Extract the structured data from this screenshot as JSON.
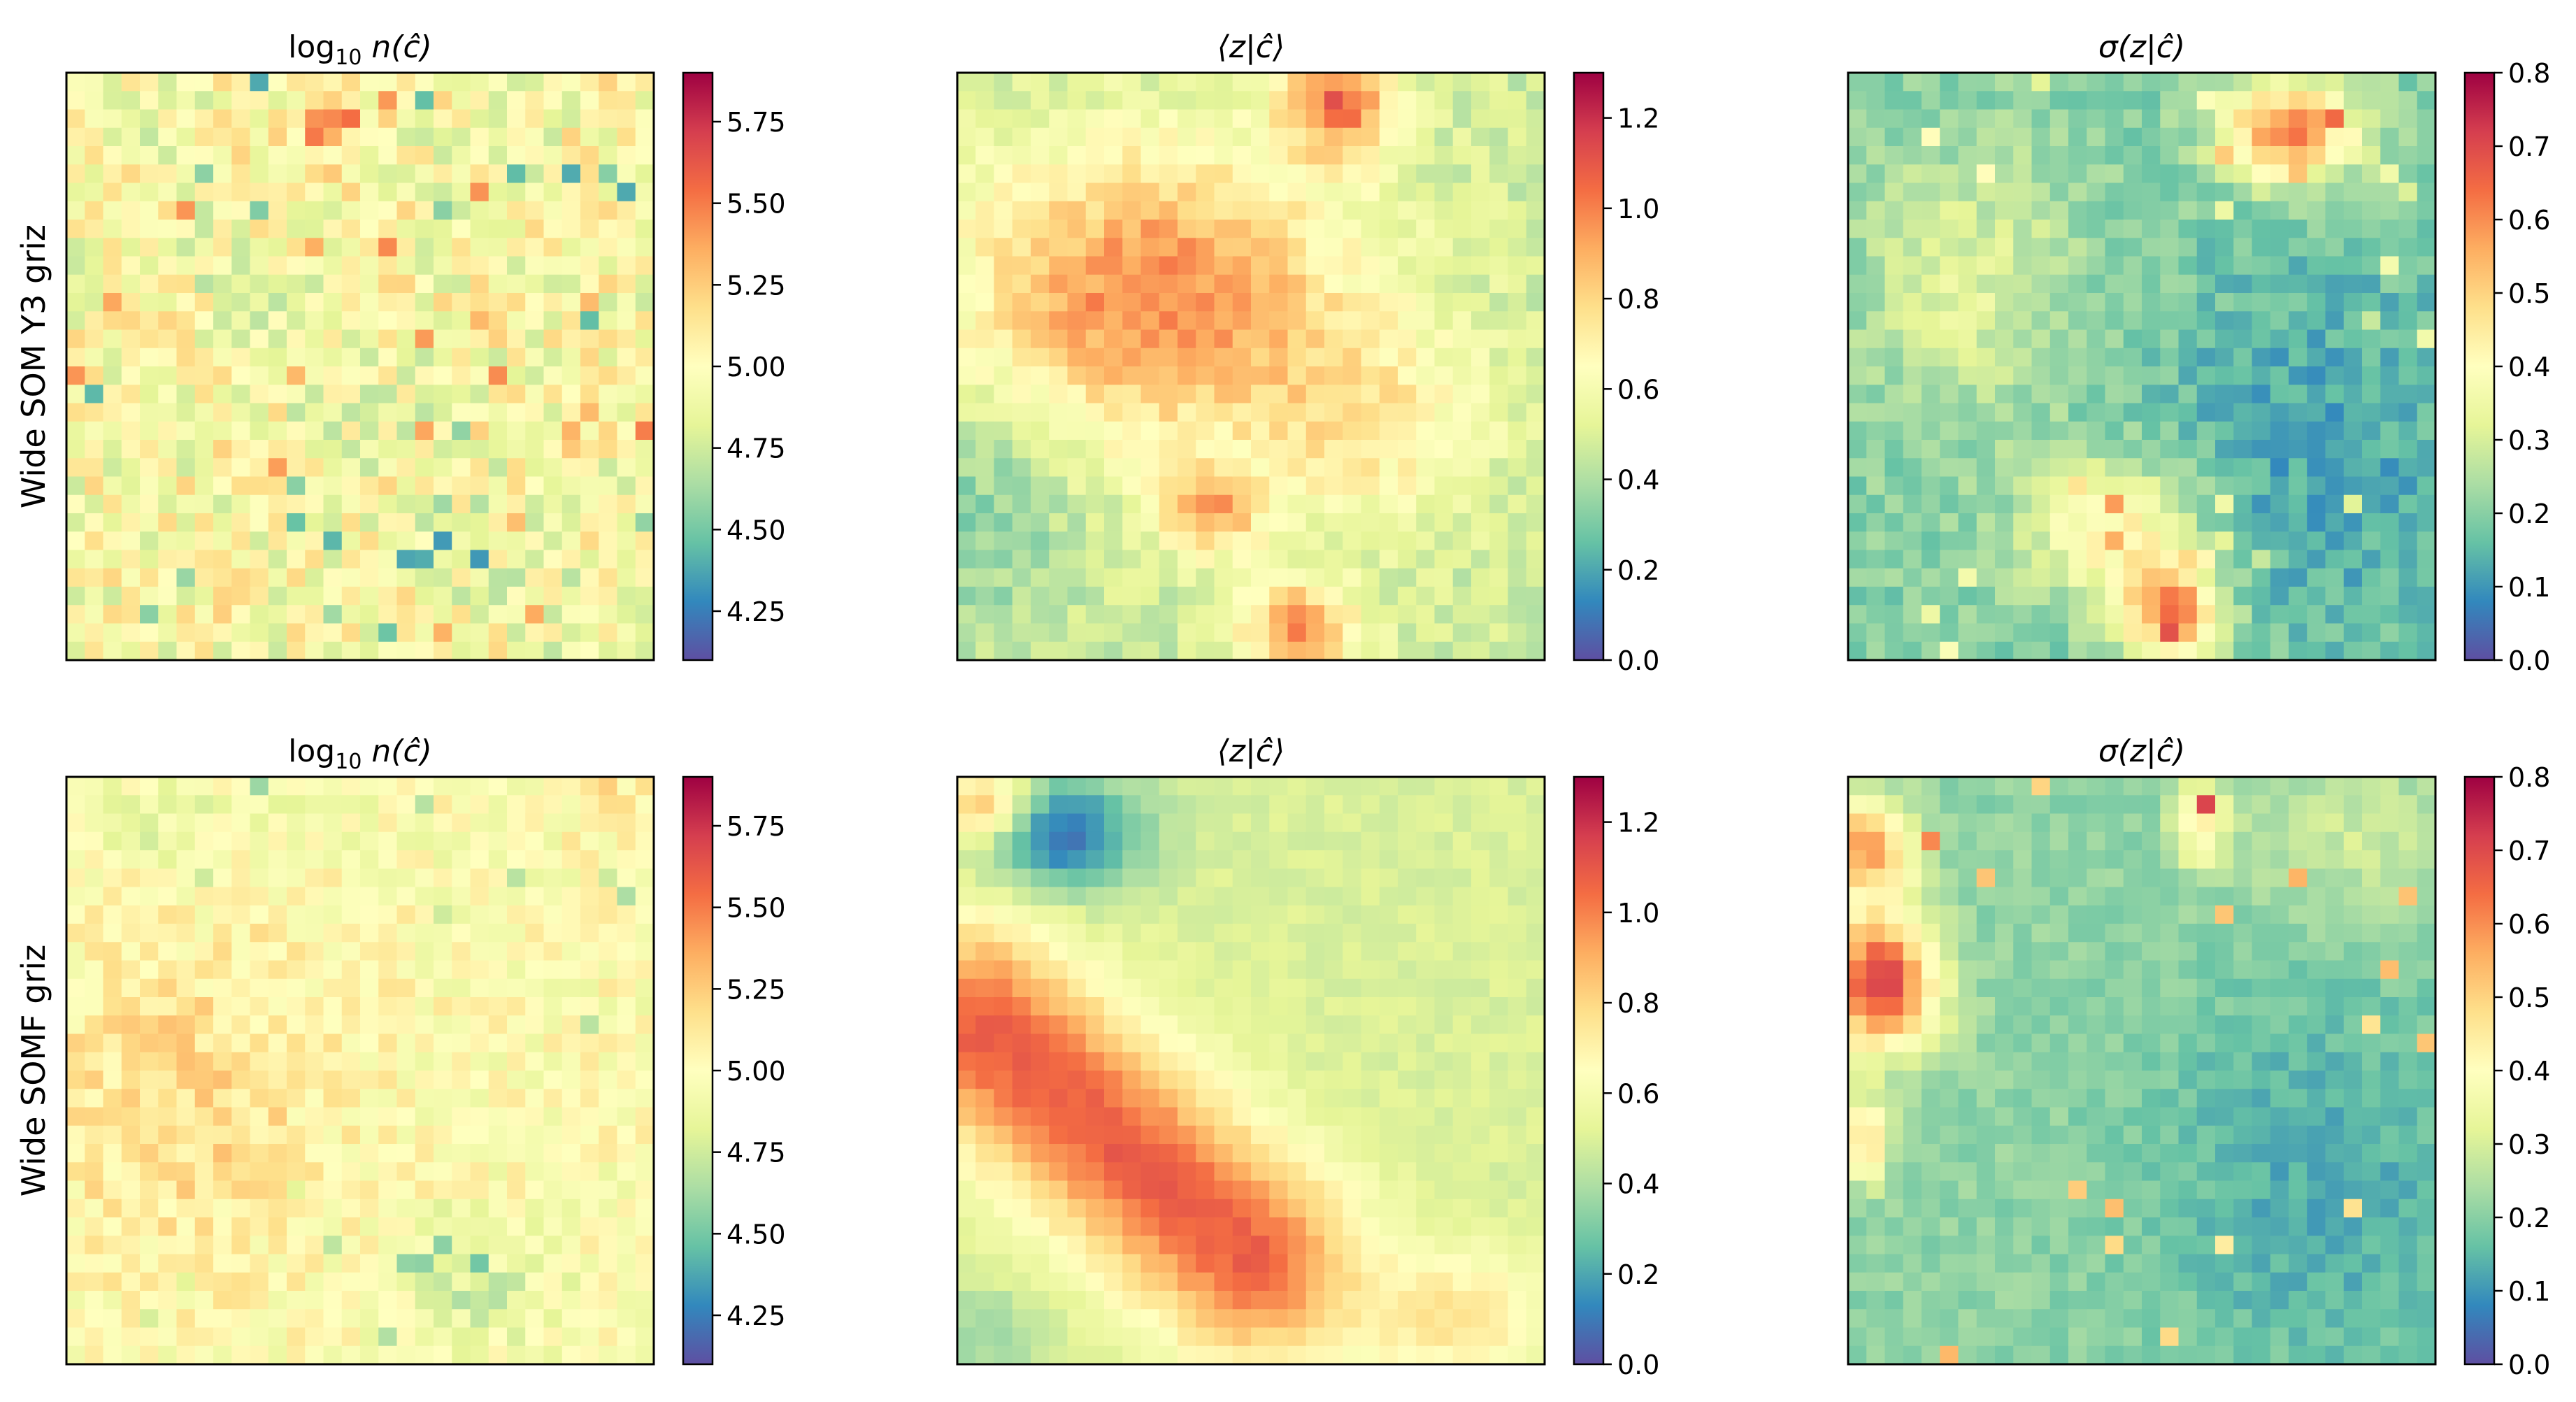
{
  "figure": {
    "row_labels": [
      "Wide SOM Y3 griz",
      "Wide SOMF griz"
    ],
    "colormap": "Spectral_r",
    "colormap_stops": [
      "#5e4fa2",
      "#3288bd",
      "#66c2a5",
      "#abdda4",
      "#e6f598",
      "#ffffbf",
      "#fee08b",
      "#fdae61",
      "#f46d43",
      "#d53e4f",
      "#9e0142"
    ]
  },
  "chart_data": [
    {
      "type": "heatmap",
      "row": 0,
      "col": 0,
      "panel": "y3-density",
      "title_parts": [
        "log",
        "10",
        " n(ĉ)"
      ],
      "grid": [
        32,
        32
      ],
      "pattern": "noise",
      "xticks": [],
      "yticks": [],
      "colorbar": {
        "range": [
          4.1,
          5.9
        ],
        "ticks": [
          "4.25",
          "4.50",
          "4.75",
          "5.00",
          "5.25",
          "5.50",
          "5.75"
        ]
      }
    },
    {
      "type": "heatmap",
      "row": 0,
      "col": 1,
      "panel": "y3-mean-z",
      "title_parts": [
        "⟨z|ĉ⟩"
      ],
      "grid": [
        32,
        32
      ],
      "pattern": "blobs",
      "xticks": [],
      "yticks": [],
      "colorbar": {
        "range": [
          0.0,
          1.3
        ],
        "ticks": [
          "0.0",
          "0.2",
          "0.4",
          "0.6",
          "0.8",
          "1.0",
          "1.2"
        ]
      }
    },
    {
      "type": "heatmap",
      "row": 0,
      "col": 2,
      "panel": "y3-sigma-z",
      "title_parts": [
        "σ(z|ĉ)"
      ],
      "grid": [
        32,
        32
      ],
      "pattern": "ridges",
      "xticks": [],
      "yticks": [],
      "colorbar": {
        "range": [
          0.0,
          0.8
        ],
        "ticks": [
          "0.0",
          "0.1",
          "0.2",
          "0.3",
          "0.4",
          "0.5",
          "0.6",
          "0.7",
          "0.8"
        ]
      }
    },
    {
      "type": "heatmap",
      "row": 1,
      "col": 0,
      "panel": "somf-density",
      "title_parts": [
        "log",
        "10",
        " n(ĉ)"
      ],
      "grid": [
        32,
        32
      ],
      "pattern": "smooth-noise",
      "xticks": [],
      "yticks": [],
      "colorbar": {
        "range": [
          4.1,
          5.9
        ],
        "ticks": [
          "4.25",
          "4.50",
          "4.75",
          "5.00",
          "5.25",
          "5.50",
          "5.75"
        ]
      }
    },
    {
      "type": "heatmap",
      "row": 1,
      "col": 1,
      "panel": "somf-mean-z",
      "title_parts": [
        "⟨z|ĉ⟩"
      ],
      "grid": [
        32,
        32
      ],
      "pattern": "band",
      "xticks": [],
      "yticks": [],
      "colorbar": {
        "range": [
          0.0,
          1.3
        ],
        "ticks": [
          "0.0",
          "0.2",
          "0.4",
          "0.6",
          "0.8",
          "1.0",
          "1.2"
        ]
      }
    },
    {
      "type": "heatmap",
      "row": 1,
      "col": 2,
      "panel": "somf-sigma-z",
      "title_parts": [
        "σ(z|ĉ)"
      ],
      "grid": [
        32,
        32
      ],
      "pattern": "edges",
      "xticks": [],
      "yticks": [],
      "colorbar": {
        "range": [
          0.0,
          0.8
        ],
        "ticks": [
          "0.0",
          "0.1",
          "0.2",
          "0.3",
          "0.4",
          "0.5",
          "0.6",
          "0.7",
          "0.8"
        ]
      }
    }
  ]
}
